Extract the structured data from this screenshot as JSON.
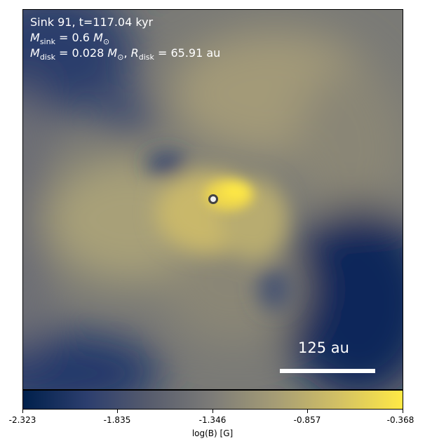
{
  "title": "Sink 91, t=117.04 kyr",
  "msink": {
    "symbol": "M",
    "sub": "sink",
    "eq": " = 0.6 ",
    "unit": "M",
    "unit_sub": "⊙"
  },
  "mdisk": {
    "symbol": "M",
    "sub": "disk",
    "eq": " = 0.028 ",
    "unit": "M",
    "unit_sub": "⊙",
    "sep": ", ",
    "r_symbol": "R",
    "r_sub": "disk",
    "r_eq": " = 65.91 au"
  },
  "scale_bar_label": "125 au",
  "colorbar": {
    "label": "log(B) [G]",
    "ticks": [
      "-2.323",
      "-1.835",
      "-1.346",
      "-0.857",
      "-0.368"
    ],
    "colormap": [
      "#00204c",
      "#2c3e6e",
      "#575c6d",
      "#7d7c78",
      "#a69d75",
      "#d3c164",
      "#ffe945"
    ]
  }
}
